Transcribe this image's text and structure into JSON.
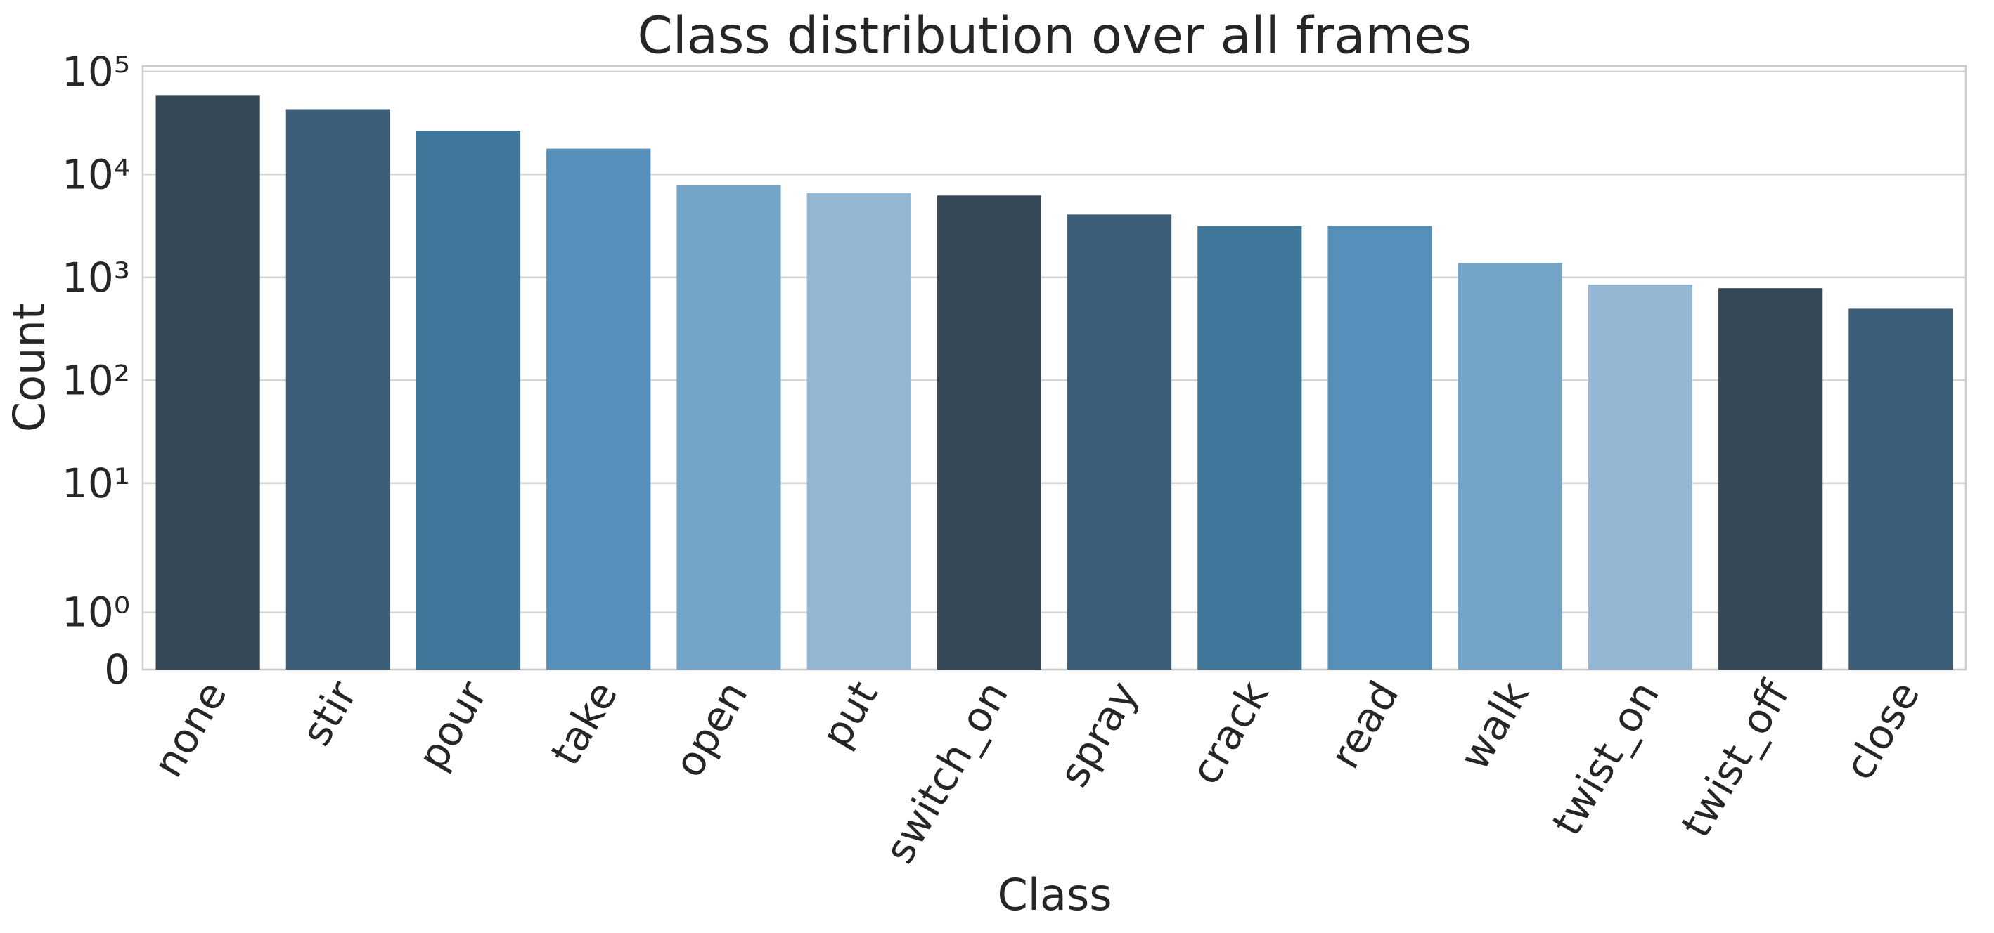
{
  "chart_data": {
    "type": "bar",
    "title": "Class distribution over all frames",
    "x_label": "Class",
    "y_label": "Count",
    "categories": [
      "none",
      "stir",
      "pour",
      "take",
      "open",
      "put",
      "switch_on",
      "spray",
      "crack",
      "read",
      "walk",
      "twist_on",
      "twist_off",
      "close"
    ],
    "values": [
      59000,
      43000,
      26600,
      17800,
      7850,
      6600,
      6240,
      4080,
      3160,
      3160,
      1380,
      850,
      785,
      496
    ],
    "colors": [
      "#364756",
      "#3d5e78",
      "#42779c",
      "#558fba",
      "#74a5c8",
      "#94b8d4",
      "#364756",
      "#3d5e78",
      "#42779c",
      "#558fba",
      "#74a5c8",
      "#94b8d4",
      "#364756",
      "#3d5e78"
    ],
    "y_scale": "symlog",
    "linthresh": 2,
    "ylim": [
      0,
      113000
    ],
    "yticks": [
      0,
      {
        "value": 1,
        "label": "10⁰"
      },
      {
        "value": 10,
        "label": "10¹"
      },
      {
        "value": 100,
        "label": "10²"
      },
      {
        "value": 1000,
        "label": "10³"
      },
      {
        "value": 10000,
        "label": "10⁴"
      },
      {
        "value": 100000,
        "label": "10⁵"
      }
    ],
    "grid": true
  }
}
